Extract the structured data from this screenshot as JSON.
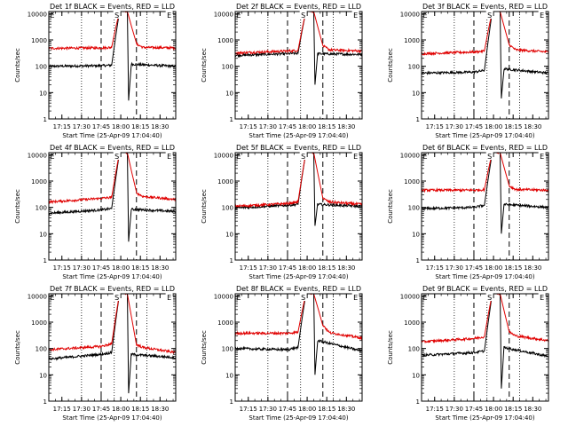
{
  "figure": {
    "colors": {
      "events": "#000000",
      "lld": "#e00000",
      "axes": "#000000",
      "background": "#ffffff"
    },
    "y_axis_label": "Counts/sec",
    "x_axis_label": "Start Time (25-Apr-09 17:04:40)",
    "x_ticks": [
      "17:15",
      "17:30",
      "17:45",
      "18:00",
      "18:15",
      "18:30"
    ],
    "y_ticks": [
      "1",
      "10",
      "100",
      "1000",
      "10000"
    ],
    "markers": {
      "s": "S",
      "e": "E"
    }
  },
  "chart_data": [
    {
      "type": "line",
      "title": "Det 1f BLACK = Events, RED = LLD",
      "xlabel": "Start Time (25-Apr-09 17:04:40)",
      "ylabel": "Counts/sec",
      "yscale": "log",
      "ylim": [
        1,
        12000
      ],
      "x_unit": "minutes after 17:04:40",
      "xlim": [
        0,
        97
      ],
      "series": [
        {
          "name": "Events",
          "color": "#000000",
          "values": [
            [
              0,
              100
            ],
            [
              40,
              105
            ],
            [
              48,
              110
            ],
            [
              54,
              14000
            ],
            [
              60,
              14000
            ],
            [
              61,
              5
            ],
            [
              63,
              120
            ],
            [
              97,
              100
            ]
          ]
        },
        {
          "name": "LLD",
          "color": "#e00000",
          "values": [
            [
              0,
              480
            ],
            [
              40,
              500
            ],
            [
              48,
              520
            ],
            [
              54,
              14000
            ],
            [
              60,
              12000
            ],
            [
              67,
              700
            ],
            [
              72,
              520
            ],
            [
              97,
              500
            ]
          ]
        }
      ],
      "dashed_x": [
        40,
        67
      ],
      "dotted_x": [
        25,
        50,
        75
      ],
      "s_x": 52,
      "e_x": 92
    },
    {
      "type": "line",
      "title": "Det 2f BLACK = Events, RED = LLD",
      "xlabel": "Start Time (25-Apr-09 17:04:40)",
      "ylabel": "Counts/sec",
      "yscale": "log",
      "ylim": [
        1,
        12000
      ],
      "x_unit": "minutes after 17:04:40",
      "xlim": [
        0,
        97
      ],
      "series": [
        {
          "name": "Events",
          "color": "#000000",
          "values": [
            [
              0,
              260
            ],
            [
              40,
              300
            ],
            [
              48,
              310
            ],
            [
              54,
              14000
            ],
            [
              60,
              14000
            ],
            [
              61,
              20
            ],
            [
              63,
              300
            ],
            [
              97,
              280
            ]
          ]
        },
        {
          "name": "LLD",
          "color": "#e00000",
          "values": [
            [
              0,
              320
            ],
            [
              40,
              380
            ],
            [
              48,
              400
            ],
            [
              54,
              14000
            ],
            [
              60,
              12000
            ],
            [
              67,
              600
            ],
            [
              72,
              420
            ],
            [
              97,
              380
            ]
          ]
        }
      ],
      "dashed_x": [
        40,
        67
      ],
      "dotted_x": [
        25,
        50,
        75
      ],
      "s_x": 52,
      "e_x": 92
    },
    {
      "type": "line",
      "title": "Det 3f BLACK = Events, RED = LLD",
      "xlabel": "Start Time (25-Apr-09 17:04:40)",
      "ylabel": "Counts/sec",
      "yscale": "log",
      "ylim": [
        1,
        12000
      ],
      "x_unit": "minutes after 17:04:40",
      "xlim": [
        0,
        97
      ],
      "series": [
        {
          "name": "Events",
          "color": "#000000",
          "values": [
            [
              0,
              55
            ],
            [
              40,
              60
            ],
            [
              48,
              70
            ],
            [
              54,
              14000
            ],
            [
              60,
              14000
            ],
            [
              61,
              6
            ],
            [
              63,
              80
            ],
            [
              97,
              55
            ]
          ]
        },
        {
          "name": "LLD",
          "color": "#e00000",
          "values": [
            [
              0,
              300
            ],
            [
              40,
              350
            ],
            [
              48,
              380
            ],
            [
              54,
              14000
            ],
            [
              60,
              12000
            ],
            [
              67,
              650
            ],
            [
              72,
              420
            ],
            [
              97,
              350
            ]
          ]
        }
      ],
      "dashed_x": [
        40,
        67
      ],
      "dotted_x": [
        25,
        50,
        75
      ],
      "s_x": 52,
      "e_x": 92
    },
    {
      "type": "line",
      "title": "Det 4f BLACK = Events, RED = LLD",
      "xlabel": "Start Time (25-Apr-09 17:04:40)",
      "ylabel": "Counts/sec",
      "yscale": "log",
      "ylim": [
        1,
        12000
      ],
      "x_unit": "minutes after 17:04:40",
      "xlim": [
        0,
        97
      ],
      "series": [
        {
          "name": "Events",
          "color": "#000000",
          "values": [
            [
              0,
              60
            ],
            [
              40,
              80
            ],
            [
              48,
              90
            ],
            [
              54,
              14000
            ],
            [
              60,
              14000
            ],
            [
              61,
              5
            ],
            [
              63,
              85
            ],
            [
              97,
              70
            ]
          ]
        },
        {
          "name": "LLD",
          "color": "#e00000",
          "values": [
            [
              0,
              160
            ],
            [
              40,
              220
            ],
            [
              48,
              240
            ],
            [
              54,
              14000
            ],
            [
              60,
              12000
            ],
            [
              67,
              350
            ],
            [
              72,
              260
            ],
            [
              97,
              200
            ]
          ]
        }
      ],
      "dashed_x": [
        40,
        67
      ],
      "dotted_x": [
        25,
        50,
        75
      ],
      "s_x": 52,
      "e_x": 92
    },
    {
      "type": "line",
      "title": "Det 5f BLACK = Events, RED = LLD",
      "xlabel": "Start Time (25-Apr-09 17:04:40)",
      "ylabel": "Counts/sec",
      "yscale": "log",
      "ylim": [
        1,
        12000
      ],
      "x_unit": "minutes after 17:04:40",
      "xlim": [
        0,
        97
      ],
      "series": [
        {
          "name": "Events",
          "color": "#000000",
          "values": [
            [
              0,
              95
            ],
            [
              40,
              120
            ],
            [
              48,
              130
            ],
            [
              54,
              14000
            ],
            [
              60,
              14000
            ],
            [
              61,
              20
            ],
            [
              63,
              130
            ],
            [
              97,
              110
            ]
          ]
        },
        {
          "name": "LLD",
          "color": "#e00000",
          "values": [
            [
              0,
              110
            ],
            [
              40,
              140
            ],
            [
              48,
              160
            ],
            [
              54,
              14000
            ],
            [
              60,
              12000
            ],
            [
              67,
              220
            ],
            [
              72,
              160
            ],
            [
              97,
              130
            ]
          ]
        }
      ],
      "dashed_x": [
        40,
        67
      ],
      "dotted_x": [
        25,
        50,
        75
      ],
      "s_x": 52,
      "e_x": 92
    },
    {
      "type": "line",
      "title": "Det 6f BLACK = Events, RED = LLD",
      "xlabel": "Start Time (25-Apr-09 17:04:40)",
      "ylabel": "Counts/sec",
      "yscale": "log",
      "ylim": [
        1,
        12000
      ],
      "x_unit": "minutes after 17:04:40",
      "xlim": [
        0,
        97
      ],
      "series": [
        {
          "name": "Events",
          "color": "#000000",
          "values": [
            [
              0,
              90
            ],
            [
              40,
              100
            ],
            [
              48,
              120
            ],
            [
              54,
              14000
            ],
            [
              60,
              14000
            ],
            [
              61,
              10
            ],
            [
              63,
              130
            ],
            [
              97,
              100
            ]
          ]
        },
        {
          "name": "LLD",
          "color": "#e00000",
          "values": [
            [
              0,
              450
            ],
            [
              40,
              450
            ],
            [
              48,
              470
            ],
            [
              54,
              14000
            ],
            [
              60,
              12000
            ],
            [
              67,
              650
            ],
            [
              72,
              480
            ],
            [
              97,
              450
            ]
          ]
        }
      ],
      "dashed_x": [
        40,
        67
      ],
      "dotted_x": [
        25,
        50,
        75
      ],
      "s_x": 52,
      "e_x": 92
    },
    {
      "type": "line",
      "title": "Det 7f BLACK = Events, RED = LLD",
      "xlabel": "Start Time (25-Apr-09 17:04:40)",
      "ylabel": "Counts/sec",
      "yscale": "log",
      "ylim": [
        1,
        12000
      ],
      "x_unit": "minutes after 17:04:40",
      "xlim": [
        0,
        97
      ],
      "series": [
        {
          "name": "Events",
          "color": "#000000",
          "values": [
            [
              0,
              40
            ],
            [
              40,
              60
            ],
            [
              48,
              70
            ],
            [
              54,
              14000
            ],
            [
              60,
              14000
            ],
            [
              61,
              2
            ],
            [
              63,
              60
            ],
            [
              97,
              45
            ]
          ]
        },
        {
          "name": "LLD",
          "color": "#e00000",
          "values": [
            [
              0,
              90
            ],
            [
              40,
              120
            ],
            [
              48,
              150
            ],
            [
              54,
              14000
            ],
            [
              60,
              12000
            ],
            [
              67,
              140
            ],
            [
              72,
              110
            ],
            [
              97,
              70
            ]
          ]
        }
      ],
      "dashed_x": [
        40,
        67
      ],
      "dotted_x": [
        25,
        50,
        75
      ],
      "s_x": 52,
      "e_x": 92
    },
    {
      "type": "line",
      "title": "Det 8f BLACK = Events, RED = LLD",
      "xlabel": "Start Time (25-Apr-09 17:04:40)",
      "ylabel": "Counts/sec",
      "yscale": "log",
      "ylim": [
        1,
        12000
      ],
      "x_unit": "minutes after 17:04:40",
      "xlim": [
        0,
        97
      ],
      "series": [
        {
          "name": "Events",
          "color": "#000000",
          "values": [
            [
              0,
              100
            ],
            [
              40,
              90
            ],
            [
              48,
              110
            ],
            [
              54,
              14000
            ],
            [
              60,
              14000
            ],
            [
              61,
              10
            ],
            [
              63,
              200
            ],
            [
              97,
              80
            ]
          ]
        },
        {
          "name": "LLD",
          "color": "#e00000",
          "values": [
            [
              0,
              380
            ],
            [
              40,
              380
            ],
            [
              48,
              420
            ],
            [
              54,
              14000
            ],
            [
              60,
              12000
            ],
            [
              67,
              800
            ],
            [
              72,
              400
            ],
            [
              97,
              250
            ]
          ]
        }
      ],
      "dashed_x": [
        40,
        67
      ],
      "dotted_x": [
        25,
        50,
        75
      ],
      "s_x": 52,
      "e_x": 92
    },
    {
      "type": "line",
      "title": "Det 9f BLACK = Events, RED = LLD",
      "xlabel": "Start Time (25-Apr-09 17:04:40)",
      "ylabel": "Counts/sec",
      "yscale": "log",
      "ylim": [
        1,
        12000
      ],
      "x_unit": "minutes after 17:04:40",
      "xlim": [
        0,
        97
      ],
      "series": [
        {
          "name": "Events",
          "color": "#000000",
          "values": [
            [
              0,
              55
            ],
            [
              40,
              70
            ],
            [
              48,
              80
            ],
            [
              54,
              14000
            ],
            [
              60,
              14000
            ],
            [
              61,
              3
            ],
            [
              63,
              110
            ],
            [
              97,
              50
            ]
          ]
        },
        {
          "name": "LLD",
          "color": "#e00000",
          "values": [
            [
              0,
              180
            ],
            [
              40,
              240
            ],
            [
              48,
              280
            ],
            [
              54,
              14000
            ],
            [
              60,
              12000
            ],
            [
              67,
              420
            ],
            [
              72,
              300
            ],
            [
              97,
              200
            ]
          ]
        }
      ],
      "dashed_x": [
        40,
        67
      ],
      "dotted_x": [
        25,
        50,
        75
      ],
      "s_x": 52,
      "e_x": 92
    }
  ]
}
